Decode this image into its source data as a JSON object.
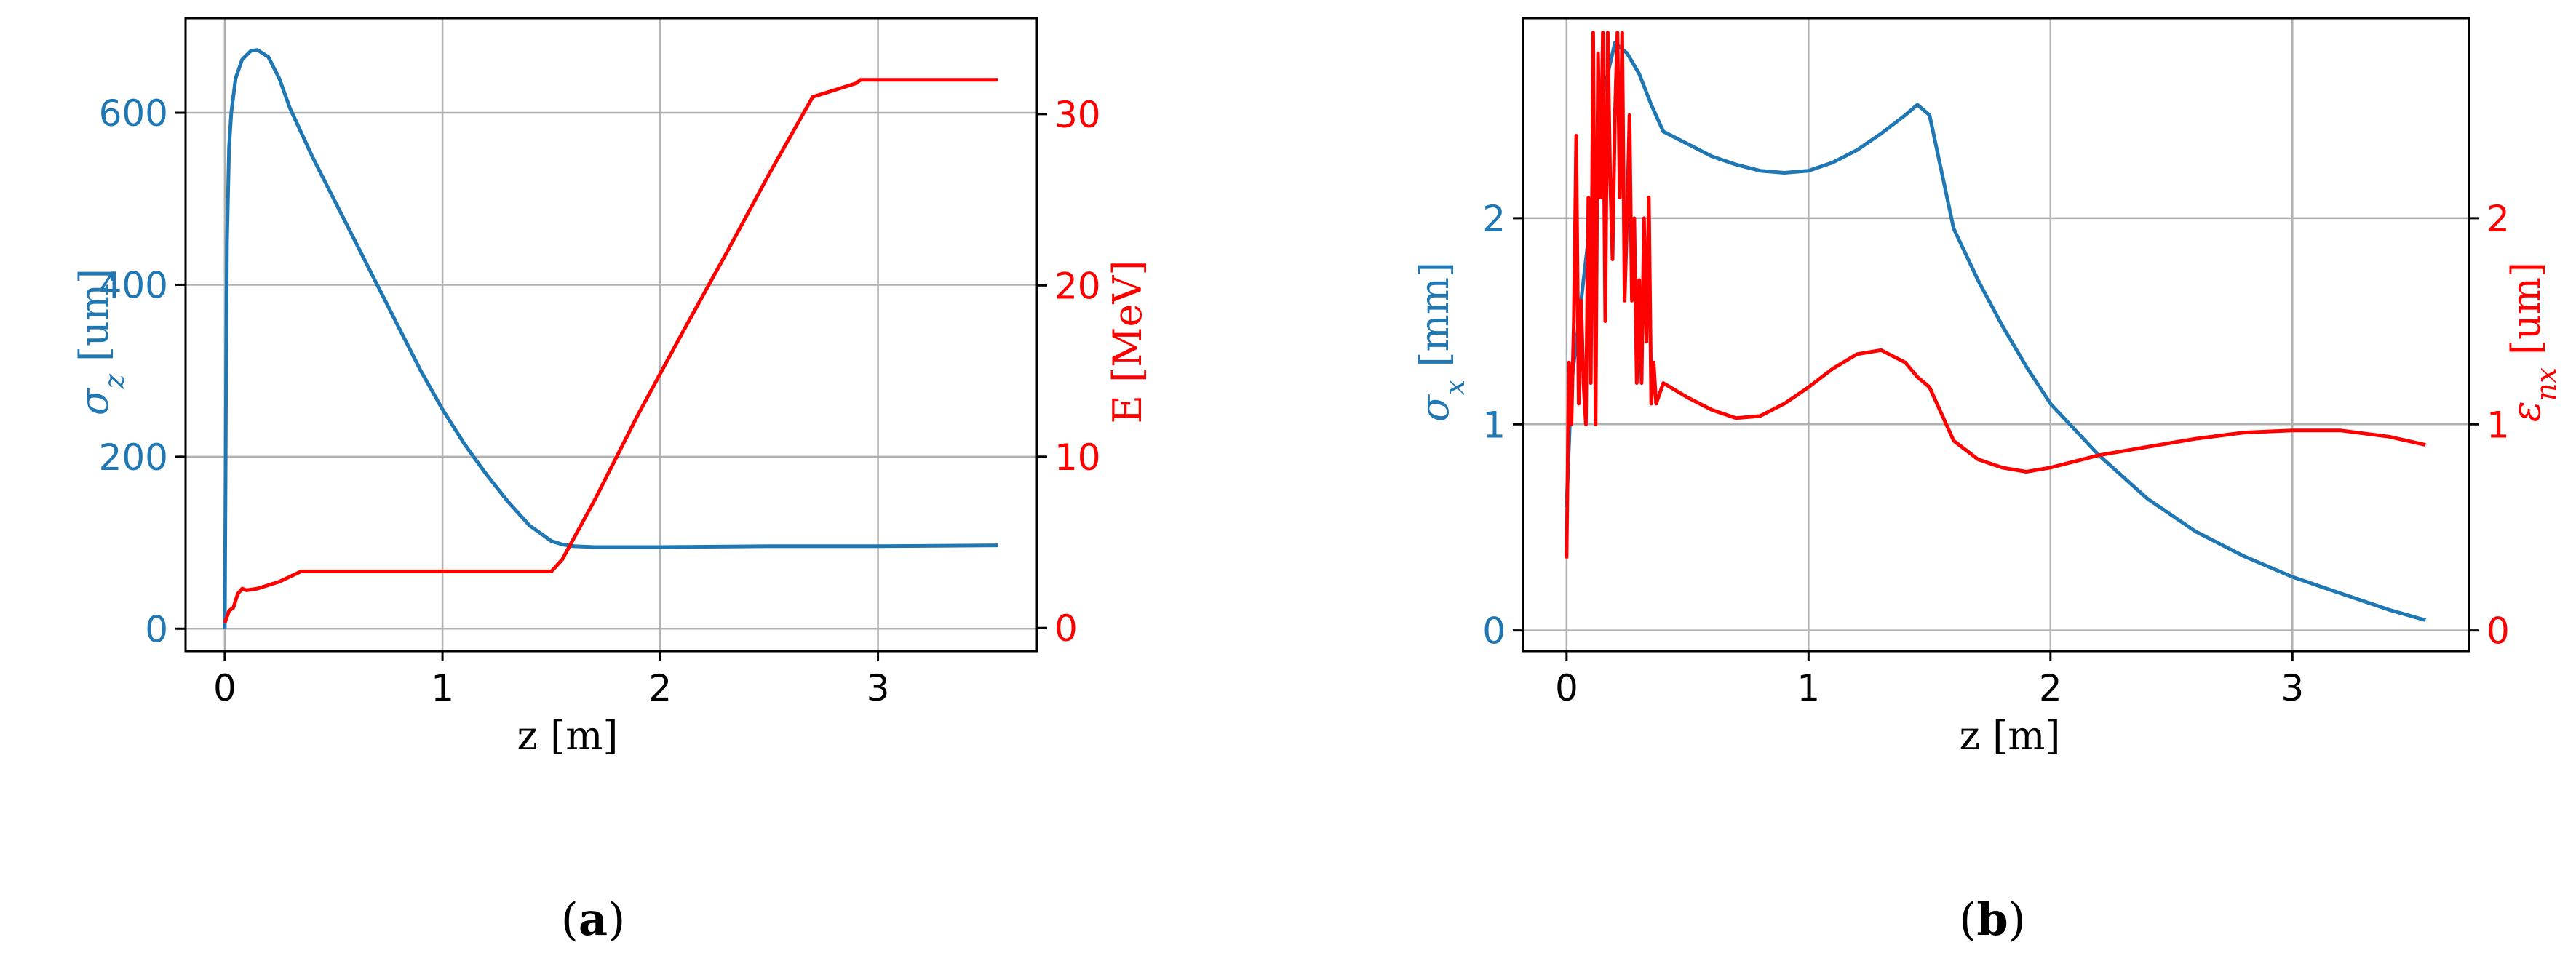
{
  "colors": {
    "left_series": "#1f77b4",
    "right_series": "#ff0000",
    "axes": "#000000",
    "grid": "#b0b0b0"
  },
  "panel_captions": [
    {
      "open": "(",
      "letter": "a",
      "close": ")"
    },
    {
      "open": "(",
      "letter": "b",
      "close": ")"
    }
  ],
  "chart_data": [
    {
      "type": "line",
      "title": "",
      "grid": true,
      "xlabel": "z [m]",
      "ylabel_left": {
        "symbol": "σ",
        "sub": "z",
        "unit": " [um]"
      },
      "ylabel_right": "E [MeV]",
      "xlim": [
        -0.18,
        3.73
      ],
      "ylim_left": [
        -26,
        710
      ],
      "ylim_right": [
        -1.35,
        35.6
      ],
      "x_ticks": [
        0,
        1,
        2,
        3
      ],
      "y_ticks_left": [
        0,
        200,
        400,
        600
      ],
      "y_ticks_right": [
        0,
        10,
        20,
        30
      ],
      "series": [
        {
          "axis": "left",
          "color": "#1f77b4",
          "x": [
            0.0,
            0.005,
            0.01,
            0.02,
            0.03,
            0.05,
            0.08,
            0.12,
            0.15,
            0.2,
            0.25,
            0.3,
            0.4,
            0.5,
            0.6,
            0.7,
            0.8,
            0.9,
            1.0,
            1.1,
            1.2,
            1.3,
            1.4,
            1.5,
            1.55,
            1.6,
            1.7,
            1.8,
            2.0,
            2.5,
            3.0,
            3.55
          ],
          "y": [
            0,
            250,
            450,
            560,
            600,
            640,
            662,
            672,
            673,
            665,
            640,
            605,
            550,
            500,
            450,
            400,
            350,
            300,
            255,
            215,
            180,
            148,
            120,
            102,
            98,
            96,
            95,
            95,
            95,
            96,
            96,
            97
          ]
        },
        {
          "axis": "right",
          "color": "#ff0000",
          "x": [
            0.0,
            0.02,
            0.04,
            0.06,
            0.08,
            0.1,
            0.15,
            0.2,
            0.25,
            0.3,
            0.35,
            0.4,
            0.6,
            0.8,
            1.0,
            1.2,
            1.4,
            1.5,
            1.55,
            1.7,
            1.9,
            2.1,
            2.3,
            2.5,
            2.7,
            2.9,
            2.92,
            3.0,
            3.2,
            3.4,
            3.55
          ],
          "y": [
            0.3,
            1.0,
            1.2,
            2.0,
            2.3,
            2.2,
            2.3,
            2.5,
            2.7,
            3.0,
            3.3,
            3.3,
            3.3,
            3.3,
            3.3,
            3.3,
            3.3,
            3.3,
            4.0,
            7.5,
            12.5,
            17.2,
            21.8,
            26.5,
            31.0,
            31.8,
            32.0,
            32.0,
            32.0,
            32.0,
            32.0
          ]
        }
      ]
    },
    {
      "type": "line",
      "title": "",
      "grid": true,
      "xlabel": "z [m]",
      "ylabel_left": {
        "symbol": "σ",
        "sub": "x",
        "unit": " [mm]"
      },
      "ylabel_right": {
        "symbol": "ε",
        "sub": "nx",
        "unit": " [um]"
      },
      "xlim": [
        -0.18,
        3.73
      ],
      "ylim_left": [
        -0.1,
        2.97
      ],
      "ylim_right": [
        -0.1,
        2.97
      ],
      "x_ticks": [
        0,
        1,
        2,
        3
      ],
      "y_ticks_left": [
        0,
        1,
        2
      ],
      "y_ticks_right": [
        0,
        1,
        2
      ],
      "series": [
        {
          "axis": "left",
          "color": "#1f77b4",
          "x": [
            0.0,
            0.02,
            0.05,
            0.1,
            0.15,
            0.2,
            0.25,
            0.3,
            0.35,
            0.4,
            0.5,
            0.6,
            0.7,
            0.8,
            0.9,
            1.0,
            1.1,
            1.2,
            1.3,
            1.4,
            1.45,
            1.5,
            1.6,
            1.7,
            1.8,
            1.9,
            2.0,
            2.2,
            2.4,
            2.6,
            2.8,
            3.0,
            3.2,
            3.4,
            3.55
          ],
          "y": [
            0.6,
            1.2,
            1.5,
            2.0,
            2.6,
            2.85,
            2.8,
            2.7,
            2.55,
            2.42,
            2.36,
            2.3,
            2.26,
            2.23,
            2.22,
            2.23,
            2.27,
            2.33,
            2.41,
            2.5,
            2.55,
            2.5,
            1.95,
            1.7,
            1.48,
            1.28,
            1.1,
            0.85,
            0.64,
            0.48,
            0.36,
            0.26,
            0.18,
            0.1,
            0.05
          ]
        },
        {
          "axis": "right",
          "color": "#ff0000",
          "x": [
            0.0,
            0.01,
            0.02,
            0.03,
            0.04,
            0.05,
            0.06,
            0.07,
            0.08,
            0.09,
            0.1,
            0.11,
            0.12,
            0.13,
            0.14,
            0.15,
            0.16,
            0.17,
            0.18,
            0.19,
            0.2,
            0.21,
            0.22,
            0.23,
            0.24,
            0.25,
            0.26,
            0.27,
            0.28,
            0.29,
            0.3,
            0.31,
            0.32,
            0.33,
            0.34,
            0.35,
            0.36,
            0.37,
            0.4,
            0.5,
            0.6,
            0.7,
            0.8,
            0.9,
            1.0,
            1.1,
            1.2,
            1.3,
            1.4,
            1.45,
            1.5,
            1.55,
            1.6,
            1.7,
            1.8,
            1.9,
            2.0,
            2.1,
            2.2,
            2.4,
            2.6,
            2.8,
            3.0,
            3.2,
            3.4,
            3.55
          ],
          "y": [
            0.35,
            1.3,
            1.0,
            1.5,
            2.4,
            1.1,
            1.6,
            1.2,
            1.0,
            2.1,
            1.2,
            2.9,
            1.0,
            2.8,
            2.1,
            2.9,
            1.5,
            2.9,
            2.2,
            1.8,
            2.5,
            2.9,
            2.1,
            2.9,
            1.6,
            2.0,
            2.5,
            1.6,
            2.0,
            1.2,
            1.7,
            1.2,
            2.0,
            1.4,
            2.1,
            1.1,
            1.3,
            1.1,
            1.2,
            1.13,
            1.07,
            1.03,
            1.04,
            1.1,
            1.18,
            1.27,
            1.34,
            1.36,
            1.3,
            1.23,
            1.18,
            1.05,
            0.92,
            0.83,
            0.79,
            0.77,
            0.79,
            0.82,
            0.85,
            0.89,
            0.93,
            0.96,
            0.97,
            0.97,
            0.94,
            0.9
          ]
        }
      ]
    }
  ]
}
